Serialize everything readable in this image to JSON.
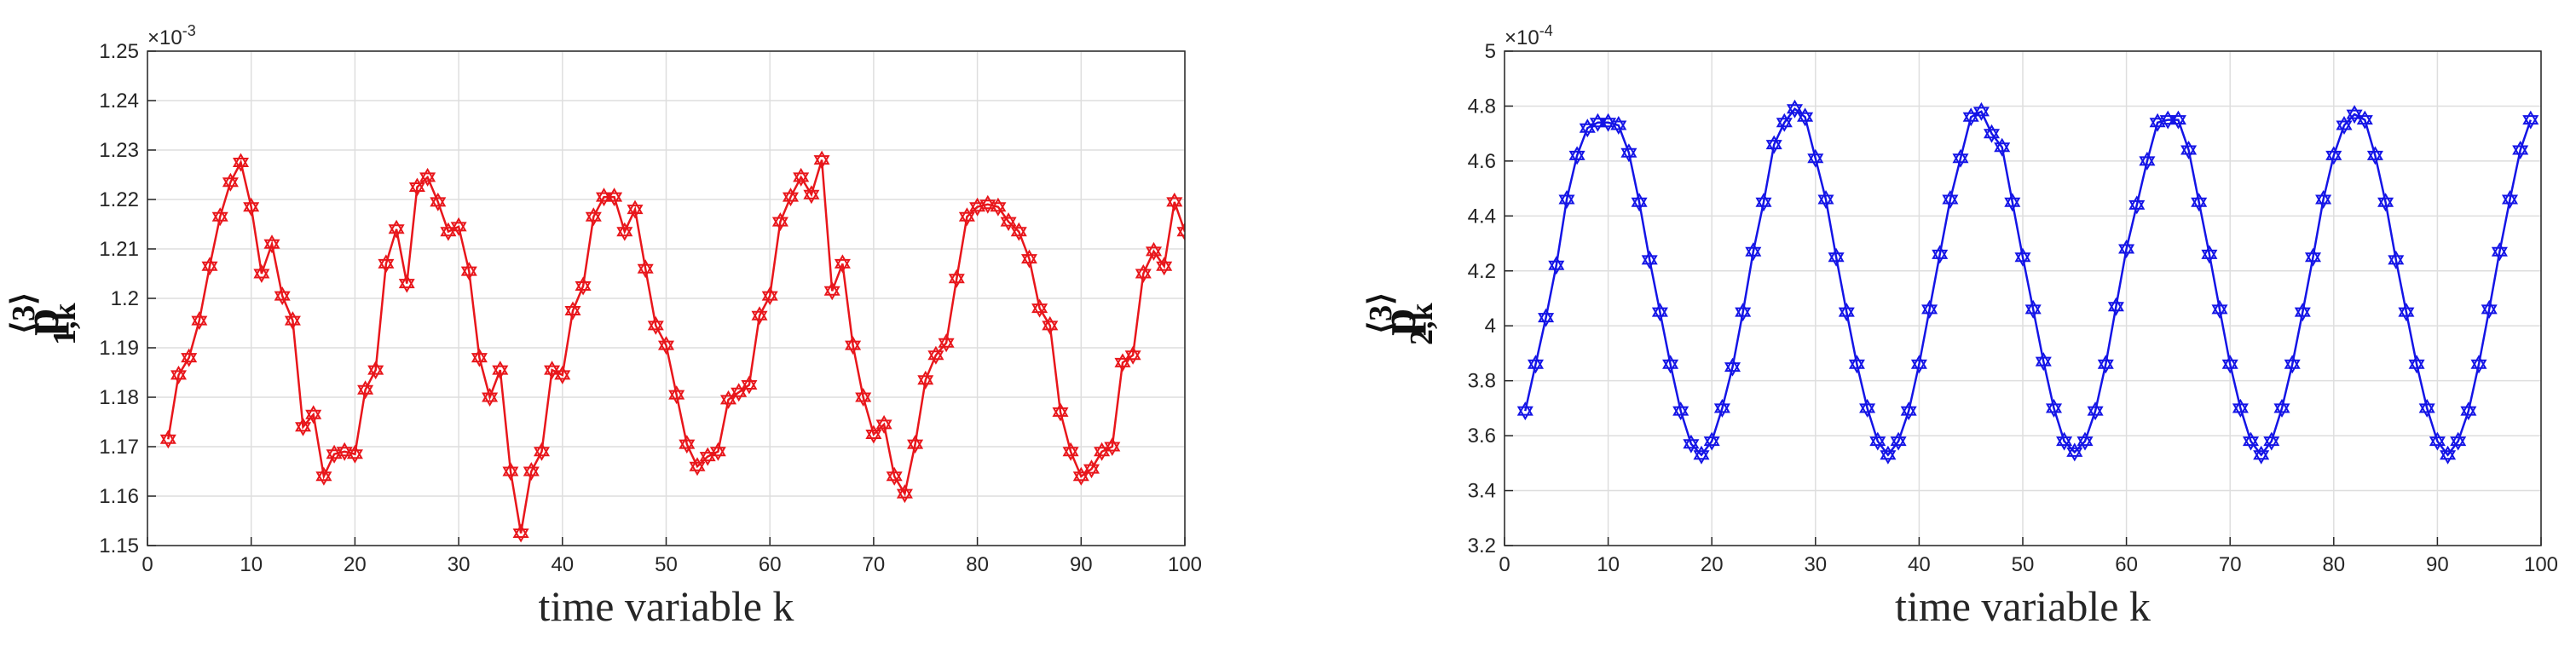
{
  "chart_data": [
    {
      "type": "line",
      "color": "#e8161b",
      "marker": "hexagram",
      "grid": true,
      "xlabel": "time variable k",
      "ylabel": "p",
      "ylabel_sup": "⟨3⟩",
      "ylabel_sub": "1,k",
      "y_multiplier": "×10",
      "y_exponent": "-3",
      "xlim": [
        0,
        100
      ],
      "xticks": [
        0,
        10,
        20,
        30,
        40,
        50,
        60,
        70,
        80,
        90,
        100
      ],
      "ylim": [
        1.15,
        1.25
      ],
      "yticks": [
        1.15,
        1.16,
        1.17,
        1.18,
        1.19,
        1.2,
        1.21,
        1.22,
        1.23,
        1.24,
        1.25
      ],
      "x": [
        2,
        3,
        4,
        5,
        6,
        7,
        8,
        9,
        10,
        11,
        12,
        13,
        14,
        15,
        16,
        17,
        18,
        19,
        20,
        21,
        22,
        23,
        24,
        25,
        26,
        27,
        28,
        29,
        30,
        31,
        32,
        33,
        34,
        35,
        36,
        37,
        38,
        39,
        40,
        41,
        42,
        43,
        44,
        45,
        46,
        47,
        48,
        49,
        50,
        51,
        52,
        53,
        54,
        55,
        56,
        57,
        58,
        59,
        60,
        61,
        62,
        63,
        64,
        65,
        66,
        67,
        68,
        69,
        70,
        71,
        72,
        73,
        74,
        75,
        76,
        77,
        78,
        79,
        80,
        81,
        82,
        83,
        84,
        85,
        86,
        87,
        88,
        89,
        90,
        91,
        92,
        93,
        94,
        95,
        96,
        97,
        98,
        99,
        100
      ],
      "values": [
        1.1715,
        1.1845,
        1.188,
        1.1955,
        1.2065,
        1.2165,
        1.2235,
        1.2275,
        1.2185,
        1.205,
        1.211,
        1.2005,
        1.1955,
        1.174,
        1.1765,
        1.164,
        1.1685,
        1.169,
        1.1685,
        1.1815,
        1.1855,
        1.207,
        1.214,
        1.203,
        1.2225,
        1.2245,
        1.2195,
        1.2135,
        1.2145,
        1.2055,
        1.188,
        1.18,
        1.1855,
        1.165,
        1.1525,
        1.165,
        1.169,
        1.1855,
        1.1845,
        1.1975,
        1.2025,
        1.2165,
        1.2205,
        1.2205,
        1.2135,
        1.218,
        1.206,
        1.1945,
        1.1905,
        1.1805,
        1.1705,
        1.166,
        1.168,
        1.169,
        1.1795,
        1.181,
        1.1825,
        1.1965,
        1.2005,
        1.2155,
        1.2205,
        1.2245,
        1.221,
        1.228,
        1.2015,
        1.207,
        1.1905,
        1.18,
        1.1725,
        1.1745,
        1.164,
        1.1605,
        1.1705,
        1.1835,
        1.1885,
        1.191,
        1.204,
        1.2165,
        1.2185,
        1.219,
        1.2185,
        1.2155,
        1.2135,
        1.208,
        1.198,
        1.1945,
        1.177,
        1.169,
        1.164,
        1.1655,
        1.169,
        1.17,
        1.187,
        1.1885,
        1.205,
        1.2095,
        1.2065,
        1.2195,
        1.2135
      ]
    },
    {
      "type": "line",
      "color": "#1414e6",
      "marker": "hexagram",
      "grid": true,
      "xlabel": "time variable k",
      "ylabel": "p",
      "ylabel_sup": "⟨3⟩",
      "ylabel_sub": "2,k",
      "y_multiplier": "×10",
      "y_exponent": "-4",
      "xlim": [
        0,
        100
      ],
      "xticks": [
        0,
        10,
        20,
        30,
        40,
        50,
        60,
        70,
        80,
        90,
        100
      ],
      "ylim": [
        3.2,
        5
      ],
      "yticks": [
        3.2,
        3.4,
        3.6,
        3.8,
        4,
        4.2,
        4.4,
        4.6,
        4.8,
        5
      ],
      "x": [
        2,
        3,
        4,
        5,
        6,
        7,
        8,
        9,
        10,
        11,
        12,
        13,
        14,
        15,
        16,
        17,
        18,
        19,
        20,
        21,
        22,
        23,
        24,
        25,
        26,
        27,
        28,
        29,
        30,
        31,
        32,
        33,
        34,
        35,
        36,
        37,
        38,
        39,
        40,
        41,
        42,
        43,
        44,
        45,
        46,
        47,
        48,
        49,
        50,
        51,
        52,
        53,
        54,
        55,
        56,
        57,
        58,
        59,
        60,
        61,
        62,
        63,
        64,
        65,
        66,
        67,
        68,
        69,
        70,
        71,
        72,
        73,
        74,
        75,
        76,
        77,
        78,
        79,
        80,
        81,
        82,
        83,
        84,
        85,
        86,
        87,
        88,
        89,
        90,
        91,
        92,
        93,
        94,
        95,
        96,
        97,
        98,
        99
      ],
      "values": [
        3.69,
        3.86,
        4.03,
        4.22,
        4.46,
        4.62,
        4.72,
        4.74,
        4.74,
        4.73,
        4.63,
        4.45,
        4.24,
        4.05,
        3.86,
        3.69,
        3.57,
        3.53,
        3.58,
        3.7,
        3.85,
        4.05,
        4.27,
        4.45,
        4.66,
        4.74,
        4.79,
        4.76,
        4.61,
        4.46,
        4.25,
        4.05,
        3.86,
        3.7,
        3.58,
        3.53,
        3.58,
        3.69,
        3.86,
        4.06,
        4.26,
        4.46,
        4.61,
        4.76,
        4.78,
        4.7,
        4.65,
        4.45,
        4.25,
        4.06,
        3.87,
        3.7,
        3.58,
        3.54,
        3.58,
        3.69,
        3.86,
        4.07,
        4.28,
        4.44,
        4.6,
        4.74,
        4.75,
        4.75,
        4.64,
        4.45,
        4.26,
        4.06,
        3.86,
        3.7,
        3.58,
        3.53,
        3.58,
        3.7,
        3.86,
        4.05,
        4.25,
        4.46,
        4.62,
        4.73,
        4.77,
        4.75,
        4.62,
        4.45,
        4.24,
        4.05,
        3.86,
        3.7,
        3.58,
        3.53,
        3.58,
        3.69,
        3.86,
        4.06,
        4.27,
        4.46,
        4.64,
        4.75
      ]
    }
  ]
}
